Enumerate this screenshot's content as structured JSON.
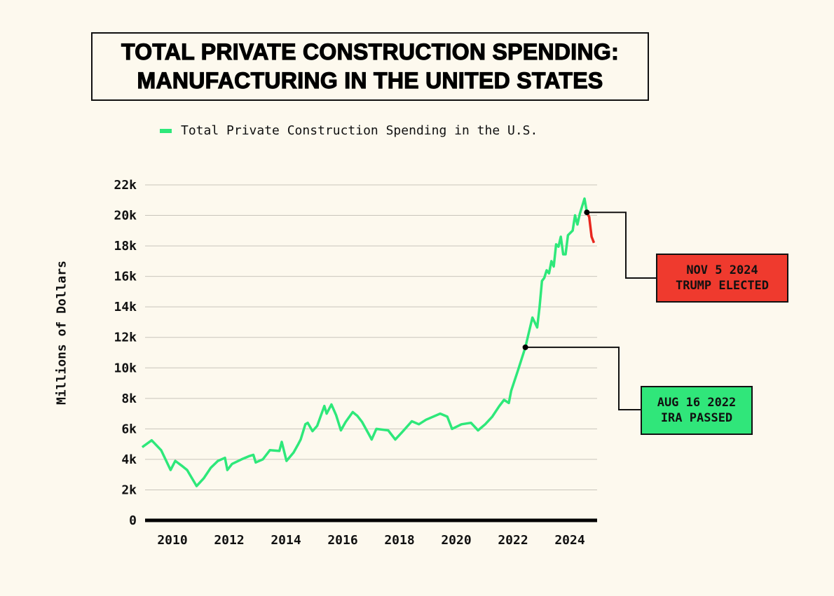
{
  "title": {
    "line1": "TOTAL PRIVATE CONSTRUCTION SPENDING:",
    "line2": "MANUFACTURING IN THE UNITED STATES"
  },
  "colors": {
    "background": "#fdf9ee",
    "series": "#2ee87a",
    "post_election": "#e8271f",
    "annotation_red": "#ef3a2e",
    "annotation_green": "#30e67a"
  },
  "chart_data": {
    "type": "line",
    "title": "TOTAL PRIVATE CONSTRUCTION SPENDING: MANUFACTURING IN THE UNITED STATES",
    "xlabel": "",
    "ylabel": "Millions of Dollars",
    "ylim": [
      0,
      22000
    ],
    "xlim": [
      "2009-01",
      "2025-02"
    ],
    "grid": true,
    "legend_placement": "top",
    "yticks": [
      0,
      2000,
      4000,
      6000,
      8000,
      10000,
      12000,
      14000,
      16000,
      18000,
      20000,
      22000
    ],
    "ytick_labels": [
      "0",
      "2k",
      "4k",
      "6k",
      "8k",
      "10k",
      "12k",
      "14k",
      "16k",
      "18k",
      "20k",
      "22k"
    ],
    "xtick_labels": [
      "2010",
      "2012",
      "2014",
      "2016",
      "2018",
      "2020",
      "2022",
      "2024"
    ],
    "series": [
      {
        "name": "Total Private Construction Spending in the U.S.",
        "color": "#2ee87a",
        "points": [
          [
            "2009-02",
            4800
          ],
          [
            "2009-06",
            5250
          ],
          [
            "2009-10",
            4600
          ],
          [
            "2010-02",
            3300
          ],
          [
            "2010-04",
            3900
          ],
          [
            "2010-07",
            3550
          ],
          [
            "2010-09",
            3300
          ],
          [
            "2011-01",
            2250
          ],
          [
            "2011-04",
            2750
          ],
          [
            "2011-07",
            3450
          ],
          [
            "2011-10",
            3900
          ],
          [
            "2012-01",
            4100
          ],
          [
            "2012-02",
            3300
          ],
          [
            "2012-04",
            3700
          ],
          [
            "2012-08",
            4000
          ],
          [
            "2012-11",
            4200
          ],
          [
            "2013-01",
            4300
          ],
          [
            "2013-02",
            3800
          ],
          [
            "2013-05",
            4000
          ],
          [
            "2013-08",
            4600
          ],
          [
            "2013-12",
            4550
          ],
          [
            "2014-01",
            5150
          ],
          [
            "2014-03",
            3900
          ],
          [
            "2014-06",
            4450
          ],
          [
            "2014-08",
            5000
          ],
          [
            "2014-09",
            5300
          ],
          [
            "2014-11",
            6300
          ],
          [
            "2014-12",
            6400
          ],
          [
            "2015-02",
            5850
          ],
          [
            "2015-04",
            6200
          ],
          [
            "2015-07",
            7500
          ],
          [
            "2015-08",
            7000
          ],
          [
            "2015-10",
            7600
          ],
          [
            "2015-12",
            6900
          ],
          [
            "2016-02",
            5900
          ],
          [
            "2016-04",
            6450
          ],
          [
            "2016-07",
            7100
          ],
          [
            "2016-09",
            6850
          ],
          [
            "2016-11",
            6450
          ],
          [
            "2017-02",
            5600
          ],
          [
            "2017-03",
            5300
          ],
          [
            "2017-05",
            6000
          ],
          [
            "2017-10",
            5900
          ],
          [
            "2018-01",
            5300
          ],
          [
            "2018-04",
            5800
          ],
          [
            "2018-08",
            6500
          ],
          [
            "2018-11",
            6300
          ],
          [
            "2019-02",
            6600
          ],
          [
            "2019-08",
            7000
          ],
          [
            "2019-11",
            6800
          ],
          [
            "2020-01",
            6000
          ],
          [
            "2020-05",
            6300
          ],
          [
            "2020-09",
            6400
          ],
          [
            "2020-12",
            5900
          ],
          [
            "2021-03",
            6300
          ],
          [
            "2021-06",
            6800
          ],
          [
            "2021-09",
            7500
          ],
          [
            "2021-11",
            7900
          ],
          [
            "2022-01",
            7700
          ],
          [
            "2022-02",
            8500
          ],
          [
            "2022-05",
            9900
          ],
          [
            "2022-08",
            11350
          ],
          [
            "2022-11",
            13300
          ],
          [
            "2023-01",
            12650
          ],
          [
            "2023-02",
            14000
          ],
          [
            "2023-03",
            15700
          ],
          [
            "2023-04",
            15900
          ],
          [
            "2023-05",
            16400
          ],
          [
            "2023-06",
            16200
          ],
          [
            "2023-07",
            17000
          ],
          [
            "2023-08",
            16650
          ],
          [
            "2023-09",
            18100
          ],
          [
            "2023-10",
            17950
          ],
          [
            "2023-11",
            18600
          ],
          [
            "2023-12",
            17450
          ],
          [
            "2024-01",
            17450
          ],
          [
            "2024-02",
            18700
          ],
          [
            "2024-04",
            19000
          ],
          [
            "2024-05",
            20000
          ],
          [
            "2024-06",
            19400
          ],
          [
            "2024-07",
            20100
          ],
          [
            "2024-09",
            21100
          ],
          [
            "2024-10",
            20200
          ]
        ]
      },
      {
        "color": "#e8271f",
        "points": [
          [
            "2024-10",
            20200
          ],
          [
            "2024-11",
            19900
          ],
          [
            "2024-12",
            18600
          ],
          [
            "2025-01",
            18200
          ]
        ]
      }
    ],
    "annotations": [
      {
        "date": "2024-10",
        "value": 20200,
        "line1": "NOV 5 2024",
        "line2": "TRUMP ELECTED",
        "color": "#ef3a2e"
      },
      {
        "date": "2022-08",
        "value": 11350,
        "line1": "AUG 16 2022",
        "line2": "IRA PASSED",
        "color": "#30e67a"
      }
    ]
  }
}
